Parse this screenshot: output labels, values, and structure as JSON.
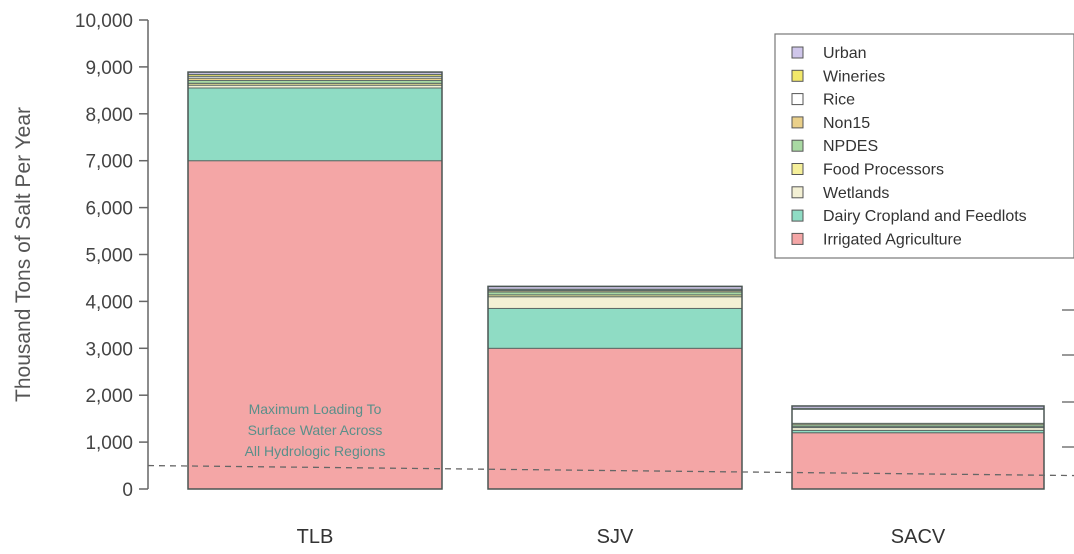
{
  "chart_data": {
    "type": "bar",
    "stacked": true,
    "ylabel": "Thousand Tons of Salt Per Year",
    "ylim": [
      0,
      10000
    ],
    "yticks": [
      0,
      1000,
      2000,
      3000,
      4000,
      5000,
      6000,
      7000,
      8000,
      9000,
      10000
    ],
    "ytick_labels": [
      "0",
      "1,000",
      "2,000",
      "3,000",
      "4,000",
      "5,000",
      "6,000",
      "7,000",
      "8,000",
      "9,000",
      "10,000"
    ],
    "categories": [
      "TLB",
      "SJV",
      "SACV"
    ],
    "series": [
      {
        "name": "Irrigated Agriculture",
        "color": "#f4a6a6",
        "values": [
          7000,
          3000,
          1200
        ]
      },
      {
        "name": "Dairy Cropland and Feedlots",
        "color": "#8fdcc4",
        "values": [
          1550,
          850,
          50
        ]
      },
      {
        "name": "Wetlands",
        "color": "#f3f0d4",
        "values": [
          60,
          250,
          60
        ]
      },
      {
        "name": "Food Processors",
        "color": "#f5ef9a",
        "values": [
          40,
          40,
          20
        ]
      },
      {
        "name": "NPDES",
        "color": "#a9d9a3",
        "values": [
          60,
          60,
          40
        ]
      },
      {
        "name": "Non15",
        "color": "#ead08a",
        "values": [
          50,
          30,
          30
        ]
      },
      {
        "name": "Rice",
        "color": "#ffffff",
        "values": [
          40,
          20,
          300
        ]
      },
      {
        "name": "Wineries",
        "color": "#f2e86a",
        "values": [
          40,
          10,
          20
        ]
      },
      {
        "name": "Urban",
        "color": "#cfc6ea",
        "values": [
          50,
          60,
          50
        ]
      }
    ],
    "legend_order": [
      "Urban",
      "Wineries",
      "Rice",
      "Non15",
      "NPDES",
      "Food Processors",
      "Wetlands",
      "Dairy Cropland and Feedlots",
      "Irrigated Agriculture"
    ],
    "legend_position": "top-right",
    "reference_line": {
      "value": 500,
      "style": "dashed",
      "label_lines": [
        "Maximum Loading To",
        "Surface Water Across",
        "All Hydrologic Regions"
      ]
    },
    "grid": false
  }
}
